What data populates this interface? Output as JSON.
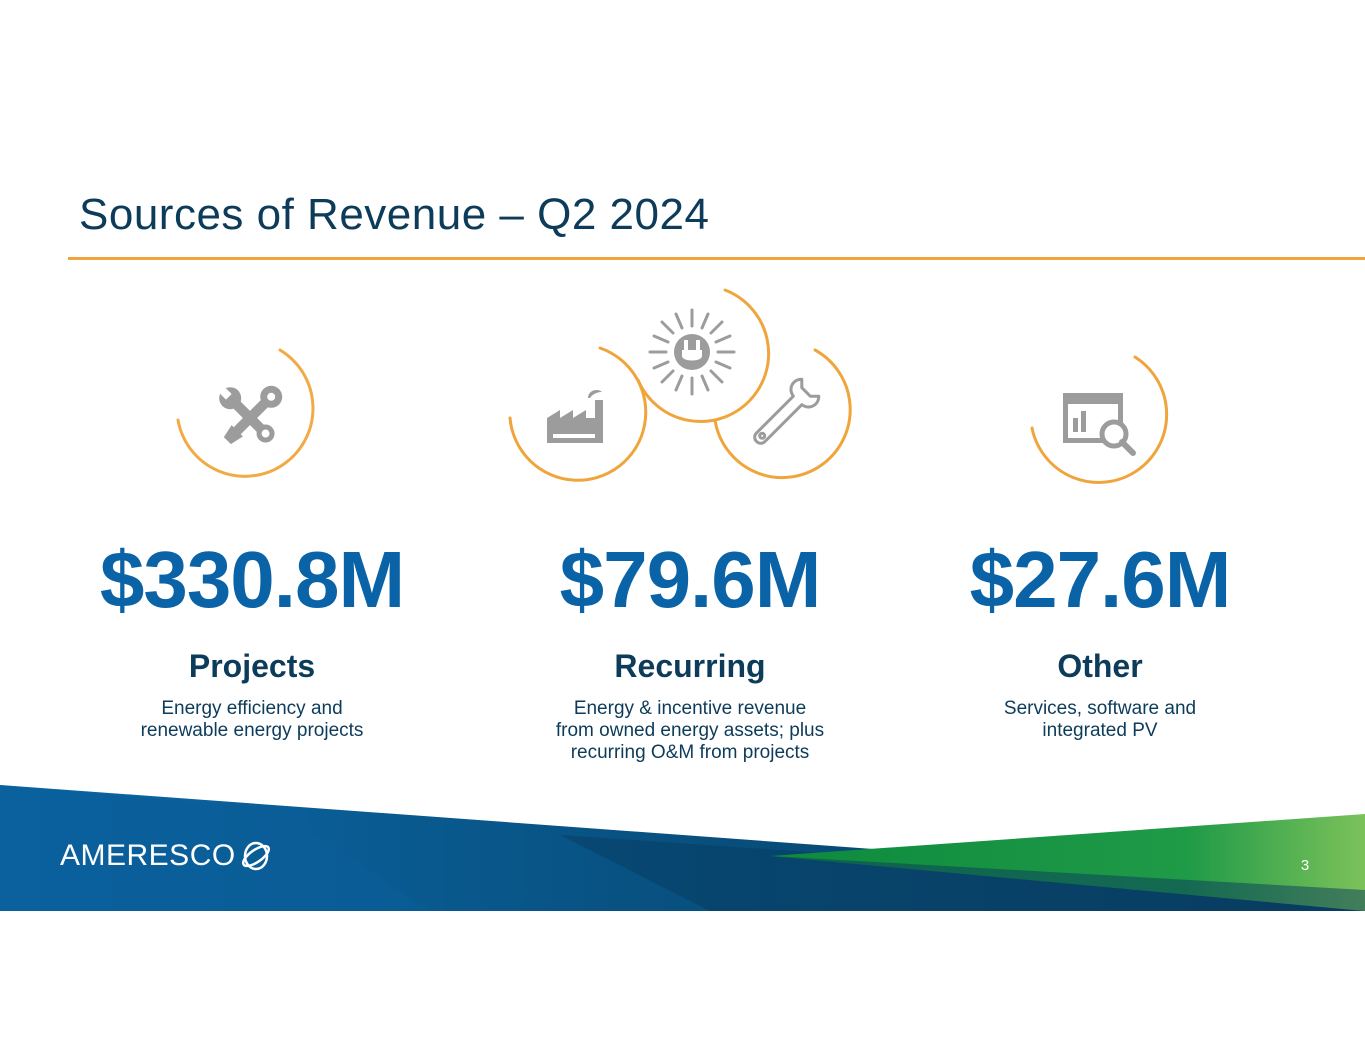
{
  "title": "Sources of Revenue – Q2 2024",
  "colors": {
    "title": "#0d3b5a",
    "accent_rule": "#f0a53c",
    "amount": "#0a63a6",
    "icon_gray": "#9c9c9c",
    "footer_blue": "#0b5c93",
    "footer_green": "#1a9a45"
  },
  "columns": [
    {
      "amount": "$330.8M",
      "category": "Projects",
      "description": [
        "Energy efficiency and",
        "renewable energy projects"
      ],
      "icons": [
        "tools-icon"
      ]
    },
    {
      "amount": "$79.6M",
      "category": "Recurring",
      "description": [
        "Energy & incentive revenue",
        "from owned energy assets; plus",
        "recurring O&M from projects"
      ],
      "icons": [
        "factory-icon",
        "solar-plug-icon",
        "wrench-icon"
      ]
    },
    {
      "amount": "$27.6M",
      "category": "Other",
      "description": [
        "Services, software and",
        "integrated PV"
      ],
      "icons": [
        "report-search-icon"
      ]
    }
  ],
  "footer": {
    "logo_text": "AMERESCO",
    "page_number": "3"
  }
}
